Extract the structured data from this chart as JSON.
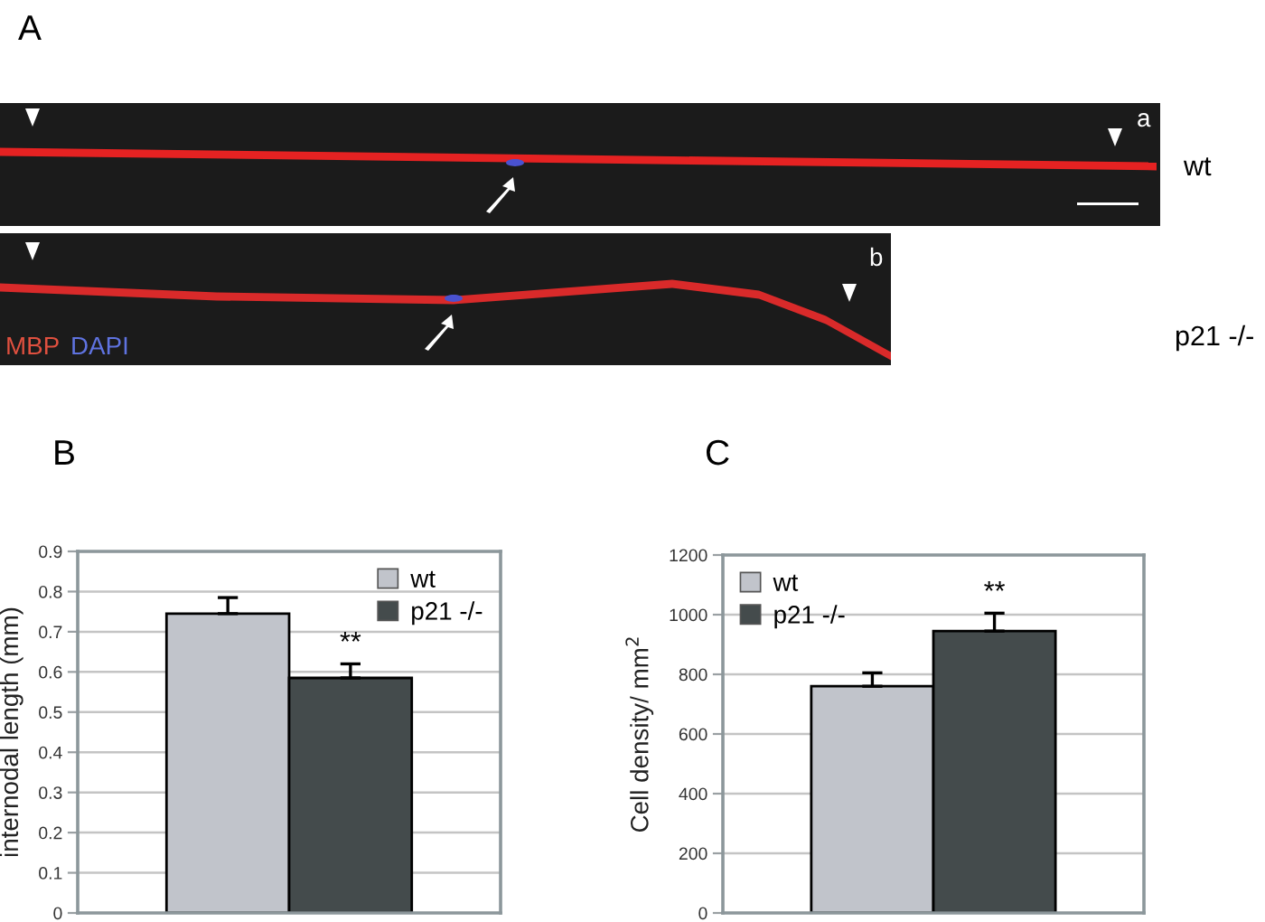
{
  "chart_data": [
    {
      "type": "other",
      "title": "A",
      "annotations": [
        "a",
        "b",
        "wt",
        "p21 -/-",
        "MBP",
        "DAPI"
      ]
    },
    {
      "type": "bar",
      "title": "B",
      "ylabel": "internodal length (mm)",
      "categories": [
        null
      ],
      "series": [
        {
          "name": "wt",
          "color": "#c1c4cb",
          "values": [
            0.745
          ],
          "errors": [
            [
              0.745,
              0.785
            ]
          ]
        },
        {
          "name": "p21 -/-",
          "color": "#444b4c",
          "values": [
            0.585
          ],
          "errors": [
            [
              0.585,
              0.62
            ]
          ]
        }
      ],
      "ylim": [
        0,
        0.9
      ],
      "yticks": [
        0,
        0.1,
        0.2,
        0.3,
        0.4,
        0.5,
        0.6,
        0.7,
        0.8,
        0.9
      ],
      "grid": "y",
      "legend": "top right",
      "annotations": [
        "**"
      ]
    },
    {
      "type": "bar",
      "title": "C",
      "ylabel": "Cell density/ mm$^{2}$",
      "categories": [
        null
      ],
      "series": [
        {
          "name": "wt",
          "color": "#c1c4cb",
          "values": [
            760
          ],
          "errors": [
            [
              760,
              805
            ]
          ]
        },
        {
          "name": "p21 -/-",
          "color": "#444b4c",
          "values": [
            945
          ],
          "errors": [
            [
              945,
              1005
            ]
          ]
        }
      ],
      "ylim": [
        0,
        1200
      ],
      "yticks": [
        0,
        200,
        400,
        600,
        800,
        1000,
        1200
      ],
      "grid": "y",
      "legend": "top left",
      "annotations": [
        "**"
      ]
    }
  ]
}
